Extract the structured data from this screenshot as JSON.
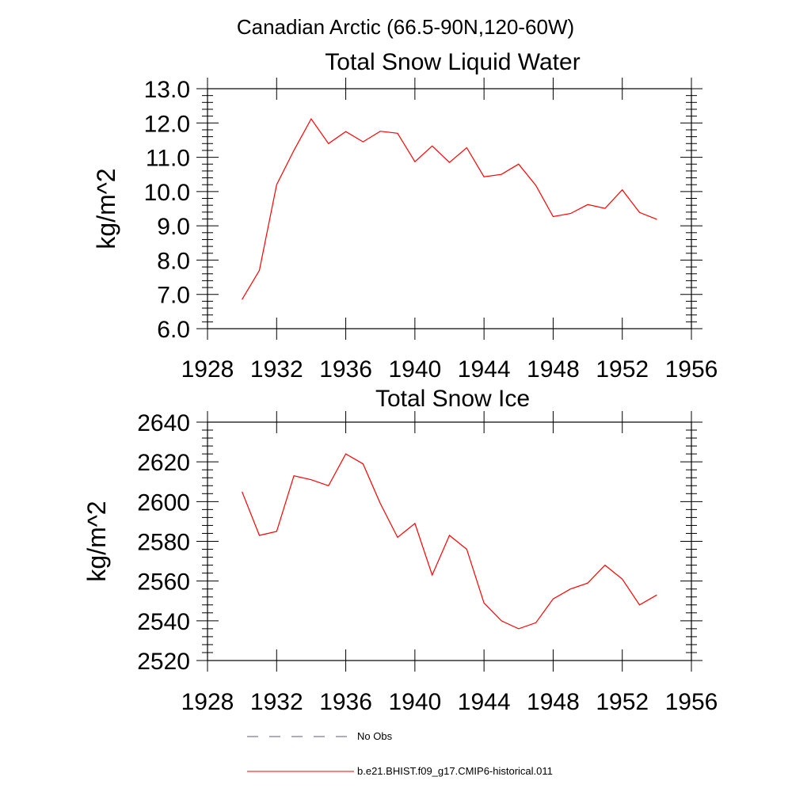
{
  "figure": {
    "suptitle": "Canadian Arctic (66.5-90N,120-60W)"
  },
  "chart_data": [
    {
      "type": "line",
      "title": "Total Snow Liquid Water",
      "xlabel": "",
      "ylabel": "kg/m^2",
      "xlim": [
        1928,
        1956
      ],
      "ylim": [
        6.0,
        13.0
      ],
      "xticks": [
        "1928",
        "1932",
        "1936",
        "1940",
        "1944",
        "1948",
        "1952",
        "1956"
      ],
      "yticks": [
        "6.0",
        "7.0",
        "8.0",
        "9.0",
        "10.0",
        "11.0",
        "12.0",
        "13.0"
      ],
      "x": [
        1930,
        1931,
        1932,
        1933,
        1934,
        1935,
        1936,
        1937,
        1938,
        1939,
        1940,
        1941,
        1942,
        1943,
        1944,
        1945,
        1946,
        1947,
        1948,
        1949,
        1950,
        1951,
        1952,
        1953,
        1954
      ],
      "series": [
        {
          "name": "b.e21.BHIST.f09_g17.CMIP6-historical.011",
          "color": "#ff0000",
          "values": [
            6.85,
            7.7,
            10.2,
            11.2,
            12.12,
            11.4,
            11.75,
            11.45,
            11.76,
            11.7,
            10.87,
            11.33,
            10.85,
            11.28,
            10.43,
            10.5,
            10.8,
            10.18,
            9.27,
            9.36,
            9.62,
            9.51,
            10.05,
            9.39,
            9.19
          ]
        }
      ]
    },
    {
      "type": "line",
      "title": "Total Snow Ice",
      "xlabel": "",
      "ylabel": "kg/m^2",
      "xlim": [
        1928,
        1956
      ],
      "ylim": [
        2520,
        2640
      ],
      "xticks": [
        "1928",
        "1932",
        "1936",
        "1940",
        "1944",
        "1948",
        "1952",
        "1956"
      ],
      "yticks": [
        "2520",
        "2540",
        "2560",
        "2580",
        "2600",
        "2620",
        "2640"
      ],
      "x": [
        1930,
        1931,
        1932,
        1933,
        1934,
        1935,
        1936,
        1937,
        1938,
        1939,
        1940,
        1941,
        1942,
        1943,
        1944,
        1945,
        1946,
        1947,
        1948,
        1949,
        1950,
        1951,
        1952,
        1953,
        1954
      ],
      "series": [
        {
          "name": "b.e21.BHIST.f09_g17.CMIP6-historical.011",
          "color": "#ff0000",
          "values": [
            2605,
            2583,
            2585,
            2613,
            2611,
            2608,
            2624,
            2619,
            2599,
            2582,
            2589,
            2563,
            2583,
            2576,
            2549,
            2540,
            2536,
            2539,
            2551,
            2556,
            2559,
            2568,
            2561,
            2548,
            2553
          ]
        }
      ]
    }
  ],
  "legend": [
    {
      "label": "No Obs",
      "style": "dashed",
      "color": "#5a5a7a"
    },
    {
      "label": "b.e21.BHIST.f09_g17.CMIP6-historical.011",
      "style": "solid",
      "color": "#ff0000"
    }
  ]
}
